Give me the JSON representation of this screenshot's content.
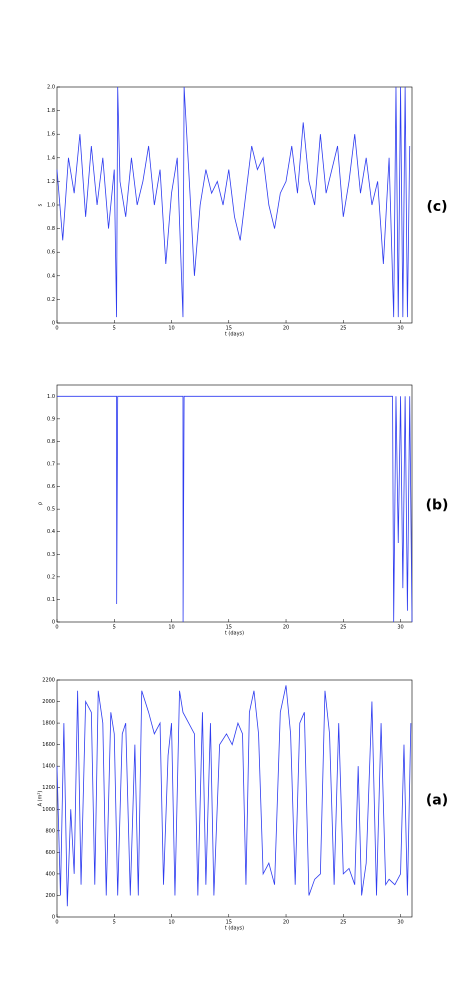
{
  "chart_data": [
    {
      "type": "line",
      "panel_label": "(c)",
      "xlabel": "t (days)",
      "ylabel": "s",
      "xlim": [
        0,
        31
      ],
      "ylim": [
        0,
        2
      ],
      "xticks": [
        0,
        5,
        10,
        15,
        20,
        25,
        30
      ],
      "yticks": [
        0,
        0.2,
        0.4,
        0.6,
        0.8,
        {
          "value": 1,
          "label": "1.0"
        },
        1.2,
        1.4,
        1.6,
        1.8,
        {
          "value": 2,
          "label": "2.0"
        }
      ],
      "x": [
        0,
        0.5,
        1,
        1.5,
        2,
        2.5,
        3,
        3.5,
        4,
        4.5,
        5,
        5.2,
        5.3,
        5.5,
        6,
        6.5,
        7,
        7.5,
        8,
        8.5,
        9,
        9.5,
        10,
        10.5,
        11,
        11.1,
        11.5,
        12,
        12.5,
        13,
        13.5,
        14,
        14.5,
        15,
        15.5,
        16,
        16.5,
        17,
        17.5,
        18,
        18.5,
        19,
        19.5,
        20,
        20.5,
        21,
        21.5,
        22,
        22.5,
        23,
        23.5,
        24,
        24.5,
        25,
        25.5,
        26,
        26.5,
        27,
        27.5,
        28,
        28.5,
        29,
        29.4,
        29.6,
        29.8,
        30,
        30.2,
        30.4,
        30.6,
        30.8
      ],
      "series": [
        {
          "color": "#2e3cf0",
          "values": [
            1.3,
            0.7,
            1.4,
            1.1,
            1.6,
            0.9,
            1.5,
            1.0,
            1.4,
            0.8,
            1.3,
            0.05,
            2.0,
            1.2,
            0.9,
            1.4,
            1.0,
            1.2,
            1.5,
            1.0,
            1.3,
            0.5,
            1.1,
            1.4,
            0.05,
            2.0,
            1.3,
            0.4,
            1.0,
            1.3,
            1.1,
            1.2,
            1.0,
            1.3,
            0.9,
            0.7,
            1.1,
            1.5,
            1.3,
            1.4,
            1.0,
            0.8,
            1.1,
            1.2,
            1.5,
            1.1,
            1.7,
            1.2,
            1.0,
            1.6,
            1.1,
            1.3,
            1.5,
            0.9,
            1.2,
            1.6,
            1.1,
            1.4,
            1.0,
            1.2,
            0.5,
            1.4,
            0.05,
            2.0,
            0.05,
            2.0,
            0.05,
            2.0,
            0.05,
            1.5
          ]
        }
      ]
    },
    {
      "type": "line",
      "panel_label": "(b)",
      "xlabel": "t (days)",
      "ylabel": "ρ",
      "xlim": [
        0,
        31
      ],
      "ylim": [
        0,
        1.05
      ],
      "xticks": [
        0,
        5,
        10,
        15,
        20,
        25,
        30
      ],
      "yticks": [
        0,
        0.1,
        0.2,
        0.3,
        0.4,
        0.5,
        0.6,
        0.7,
        0.8,
        0.9,
        {
          "value": 1,
          "label": "1.0"
        }
      ],
      "x": [
        0,
        5.2,
        5.21,
        5.3,
        11,
        11.01,
        11.1,
        29.3,
        29.4,
        29.6,
        29.8,
        30,
        30.2,
        30.4,
        30.6,
        30.8,
        31
      ],
      "series": [
        {
          "color": "#2e3cf0",
          "values": [
            1,
            1,
            0.08,
            1,
            1,
            0,
            1,
            1,
            0,
            1,
            0.35,
            1,
            0.15,
            1,
            0.05,
            1,
            0
          ]
        }
      ]
    },
    {
      "type": "line",
      "panel_label": "(a)",
      "xlabel": "t (days)",
      "ylabel": "A (m²)",
      "xlim": [
        0,
        31
      ],
      "ylim": [
        0,
        2200
      ],
      "xticks": [
        0,
        5,
        10,
        15,
        20,
        25,
        30
      ],
      "yticks": [
        0,
        200,
        400,
        600,
        800,
        1000,
        1200,
        1400,
        1600,
        1800,
        2000,
        2200
      ],
      "x": [
        0,
        0.3,
        0.6,
        0.9,
        1.2,
        1.5,
        1.8,
        2.1,
        2.5,
        3,
        3.3,
        3.6,
        4,
        4.3,
        4.7,
        5,
        5.3,
        5.7,
        6,
        6.4,
        6.8,
        7.1,
        7.4,
        8,
        8.5,
        9,
        9.3,
        9.7,
        10,
        10.3,
        10.7,
        11,
        11.5,
        12,
        12.3,
        12.7,
        13,
        13.4,
        13.7,
        14.2,
        14.8,
        15.3,
        15.8,
        16.2,
        16.5,
        16.8,
        17.2,
        17.6,
        18,
        18.5,
        19,
        19.5,
        20,
        20.4,
        20.8,
        21.2,
        21.6,
        22,
        22.5,
        23,
        23.4,
        23.8,
        24.2,
        24.6,
        25,
        25.5,
        26,
        26.3,
        26.6,
        27,
        27.5,
        27.9,
        28.3,
        28.7,
        29,
        29.5,
        30,
        30.3,
        30.6,
        30.9
      ],
      "series": [
        {
          "color": "#2e3cf0",
          "values": [
            1400,
            200,
            1800,
            100,
            1000,
            400,
            2100,
            300,
            2000,
            1900,
            300,
            2100,
            1800,
            200,
            1900,
            1700,
            200,
            1700,
            1800,
            200,
            1600,
            200,
            2100,
            1900,
            1700,
            1800,
            300,
            1500,
            1800,
            200,
            2100,
            1900,
            1800,
            1700,
            200,
            1900,
            300,
            1800,
            200,
            1600,
            1700,
            1600,
            1800,
            1700,
            300,
            1900,
            2100,
            1700,
            400,
            500,
            300,
            1900,
            2150,
            1700,
            300,
            1800,
            1900,
            200,
            350,
            400,
            2100,
            1700,
            300,
            1800,
            400,
            450,
            300,
            1400,
            200,
            500,
            2000,
            200,
            1800,
            300,
            350,
            300,
            400,
            1600,
            200,
            1800
          ]
        }
      ]
    }
  ]
}
